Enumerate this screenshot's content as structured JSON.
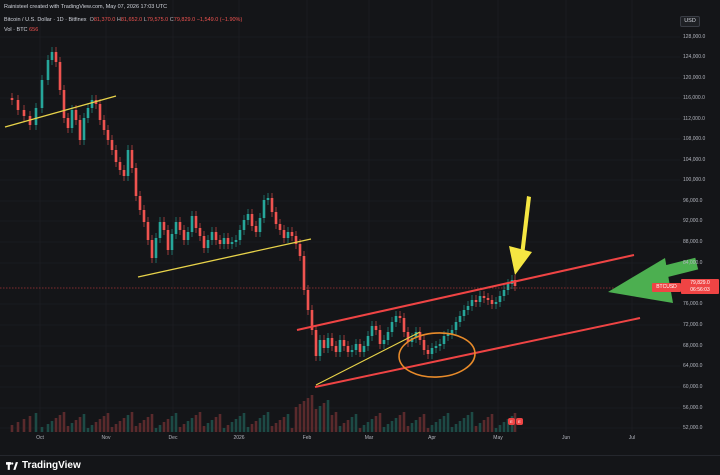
{
  "header": {
    "author_line": "Rainisteel created with TradingView.com, May 07, 2026 17:03 UTC",
    "symbol_name": "Bitcoin / U.S. Dollar · 1D · Bitfinex",
    "ohlc": {
      "o_label": "O",
      "o_value": "81,370.0",
      "h_label": "H",
      "h_value": "81,652.0",
      "l_label": "L",
      "l_value": "79,575.0",
      "c_label": "C",
      "c_value": "79,829.0",
      "change": "−1,549.0 (−1.90%)"
    },
    "volume_label": "Vol · BTC",
    "volume_value": "656"
  },
  "currency": "USD",
  "price_axis": [
    "128,000.0",
    "124,000.0",
    "120,000.0",
    "116,000.0",
    "112,000.0",
    "108,000.0",
    "104,000.0",
    "100,000.0",
    "96,000.0",
    "92,000.0",
    "88,000.0",
    "84,000.0",
    "76,000.0",
    "72,000.0",
    "68,000.0",
    "64,000.0",
    "60,000.0",
    "56,000.0",
    "52,000.0"
  ],
  "date_axis": [
    "Oct",
    "Nov",
    "Dec",
    "2026",
    "Feb",
    "Mar",
    "Apr",
    "May",
    "Jun",
    "Jul"
  ],
  "price_tag": {
    "symbol": "BTCUSD",
    "price": "79,829.0",
    "countdown": "06:56:03"
  },
  "event_badges": [
    "E",
    "E"
  ],
  "footer": {
    "brand": "TradingView"
  },
  "colors": {
    "background": "#141518",
    "up_candle": "#26a69a",
    "down_candle": "#ef5350",
    "channel": "#ef4444",
    "trendline": "#e8d34a",
    "circle": "#e88b2a",
    "arrow_yellow": "#f5e642",
    "arrow_green": "#4caf50"
  }
}
